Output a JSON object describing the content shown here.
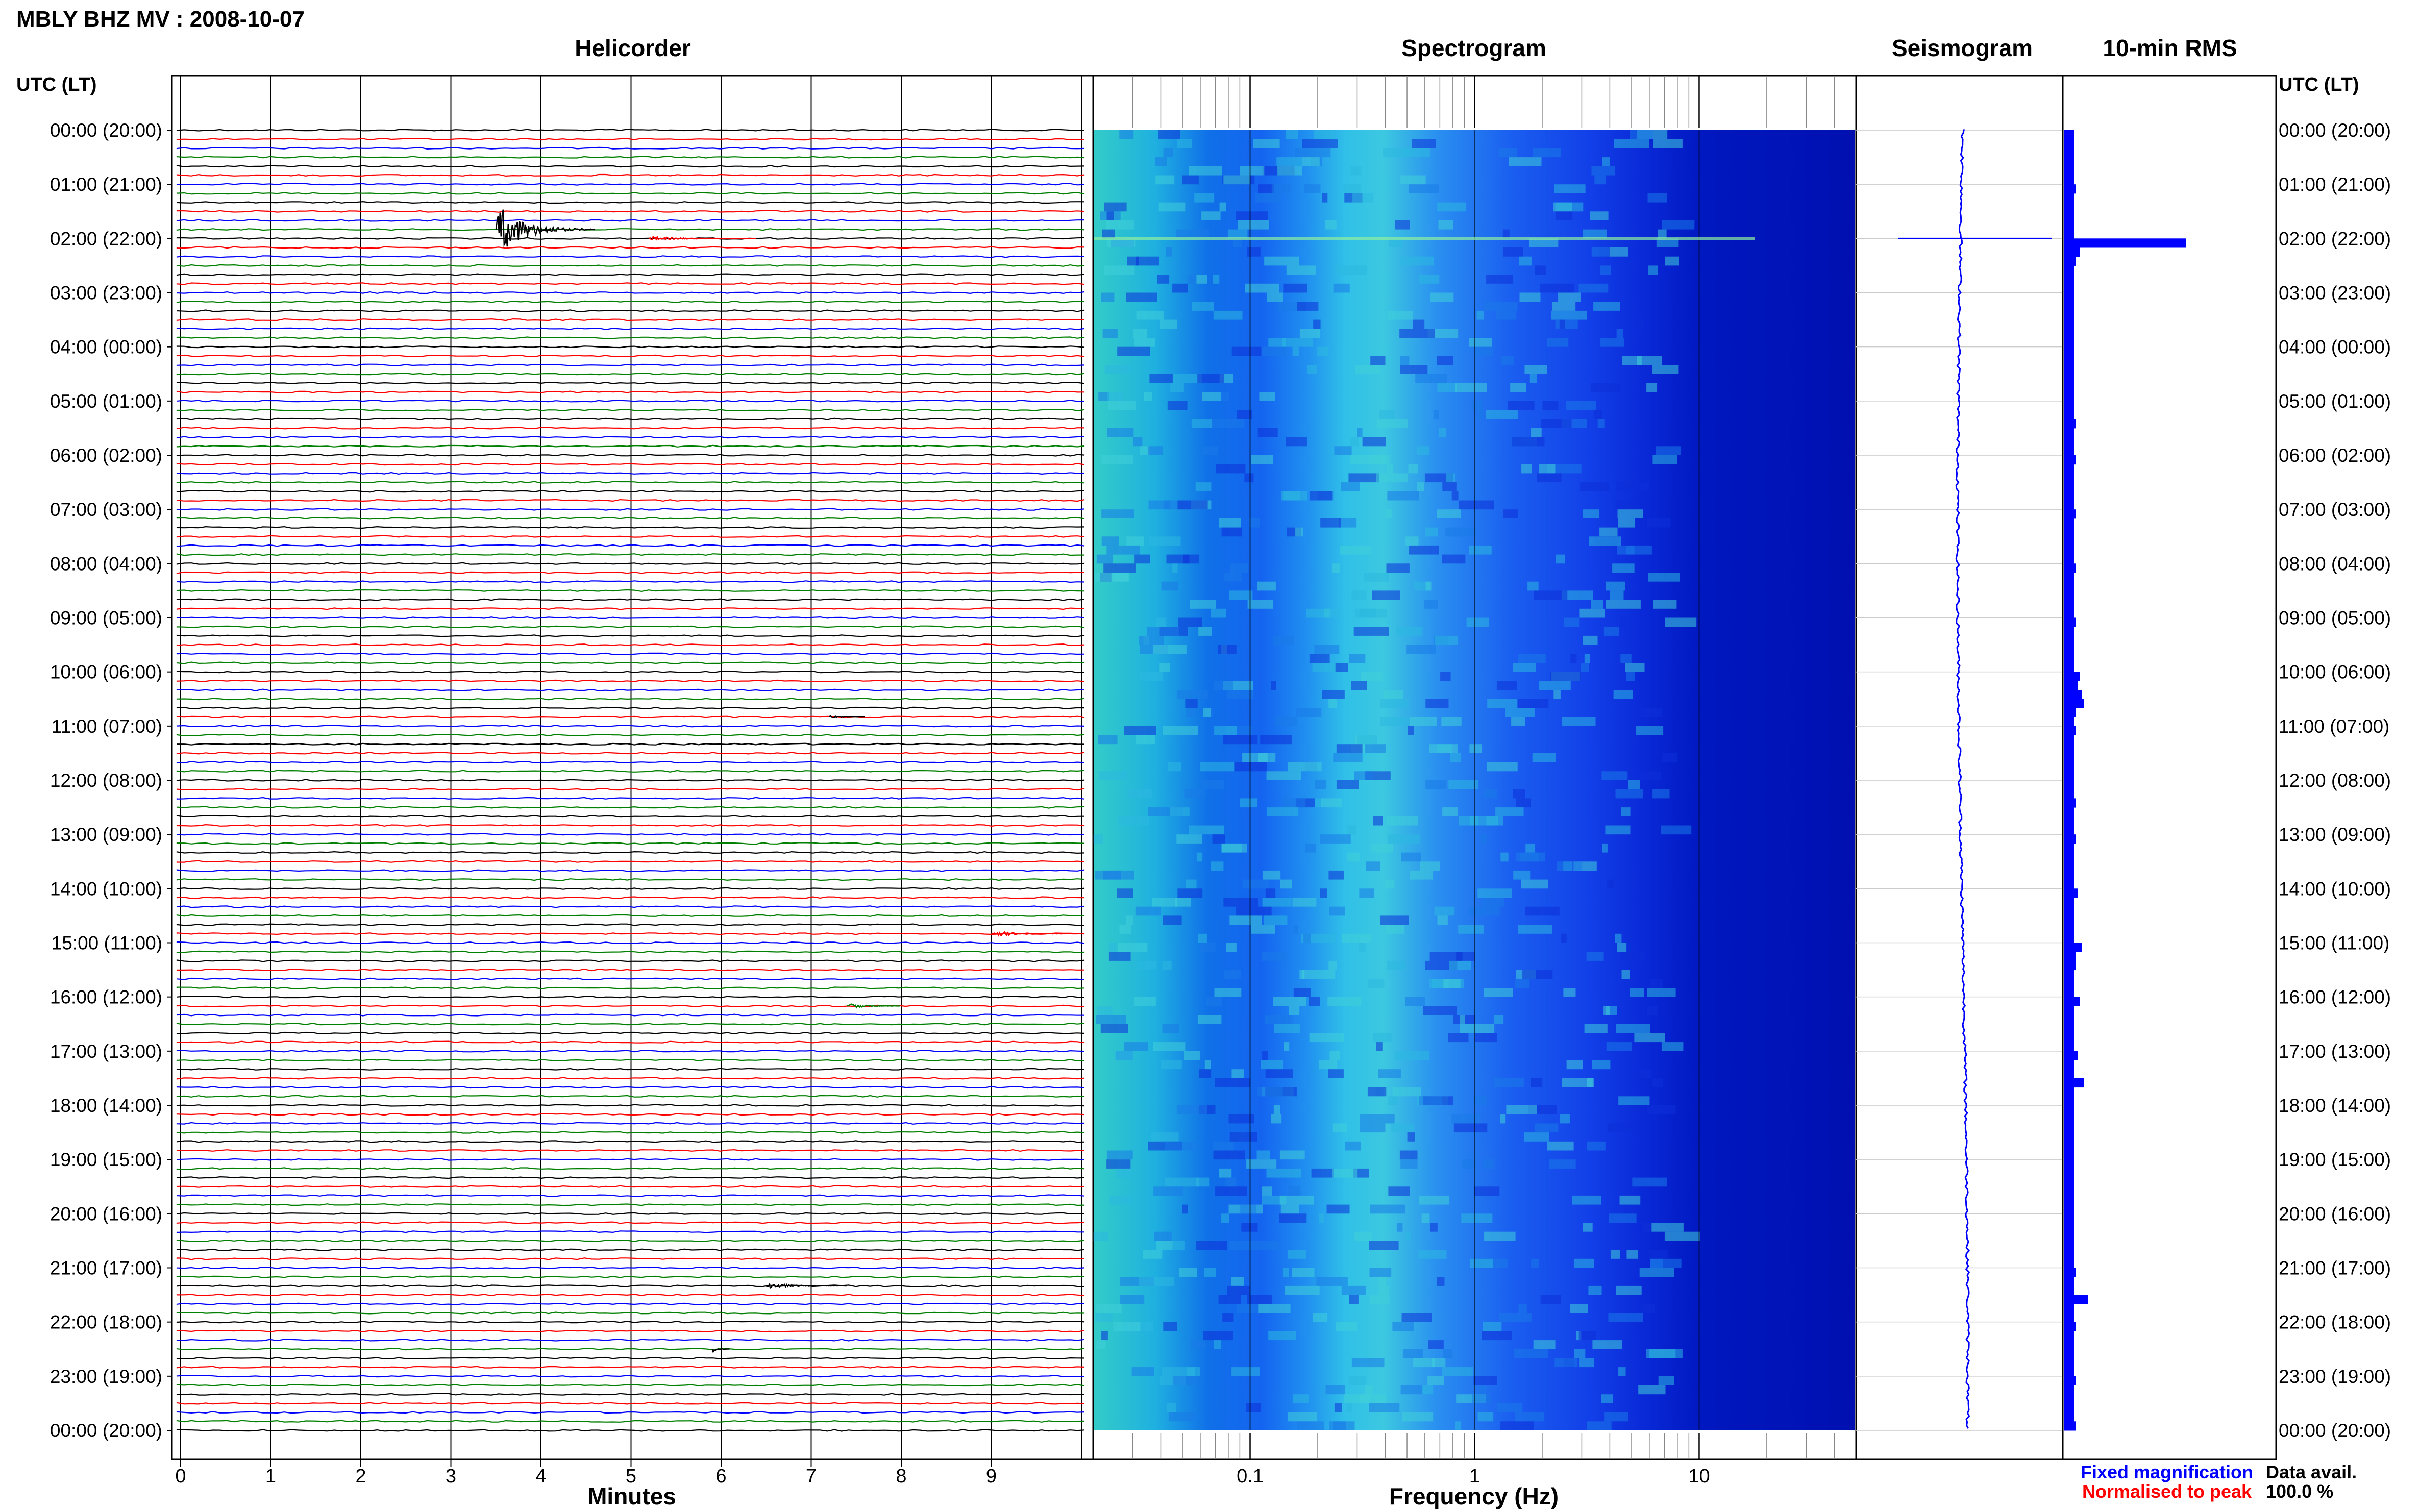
{
  "header": {
    "title": "MBLY BHZ MV : 2008-10-07"
  },
  "panels": {
    "helicorder": "Helicorder",
    "spectrogram": "Spectrogram",
    "seismogram": "Seismogram",
    "rms": "10-min RMS"
  },
  "time_axis": {
    "label_left": "UTC (LT)",
    "label_right": "UTC (LT)",
    "hours": [
      "00:00 (20:00)",
      "01:00 (21:00)",
      "02:00 (22:00)",
      "03:00 (23:00)",
      "04:00 (00:00)",
      "05:00 (01:00)",
      "06:00 (02:00)",
      "07:00 (03:00)",
      "08:00 (04:00)",
      "09:00 (05:00)",
      "10:00 (06:00)",
      "11:00 (07:00)",
      "12:00 (08:00)",
      "13:00 (09:00)",
      "14:00 (10:00)",
      "15:00 (11:00)",
      "16:00 (12:00)",
      "17:00 (13:00)",
      "18:00 (14:00)",
      "19:00 (15:00)",
      "20:00 (16:00)",
      "21:00 (17:00)",
      "22:00 (18:00)",
      "23:00 (19:00)",
      "00:00 (20:00)"
    ]
  },
  "axes": {
    "minutes_label": "Minutes",
    "minutes_ticks": [
      "0",
      "1",
      "2",
      "3",
      "4",
      "5",
      "6",
      "7",
      "8",
      "9"
    ],
    "frequency_label": "Frequency (Hz)",
    "frequency_ticks": [
      "0.1",
      "1",
      "10"
    ]
  },
  "legend": {
    "fixed": "Fixed magnification",
    "fixed_color": "#0000ff",
    "normalised": "Normalised to peak",
    "normalised_color": "#ff0000",
    "data_avail_label": "Data avail.",
    "data_avail_value": "100.0 %"
  },
  "chart_data": {
    "type": "helicorder",
    "trace_colors": [
      "#000000",
      "#ff0000",
      "#0000ff",
      "#008000"
    ],
    "hours_per_day": 24,
    "traces_per_hour": 6,
    "minutes_per_trace": 10,
    "events": [
      {
        "hour": 1,
        "trace": 5,
        "minute": 3.5,
        "duration": 1.1,
        "amp": 3.0,
        "color": "#000000"
      },
      {
        "hour": 2,
        "trace": 0,
        "minute": 5.2,
        "duration": 1.2,
        "amp": 0.25,
        "color": "#ff0000"
      },
      {
        "hour": 10,
        "trace": 5,
        "minute": 7.2,
        "duration": 0.4,
        "amp": 0.2,
        "color": "#000000"
      },
      {
        "hour": 14,
        "trace": 5,
        "minute": 9.0,
        "duration": 1.0,
        "amp": 0.35,
        "color": "#ff0000"
      },
      {
        "hour": 16,
        "trace": 1,
        "minute": 7.4,
        "duration": 0.6,
        "amp": 0.35,
        "color": "#008000"
      },
      {
        "hour": 21,
        "trace": 2,
        "minute": 6.5,
        "duration": 0.9,
        "amp": 0.4,
        "color": "#000000"
      },
      {
        "hour": 22,
        "trace": 3,
        "minute": 5.9,
        "duration": 0.2,
        "amp": 0.4,
        "color": "#000000"
      }
    ],
    "spectrogram_freq_range_hz": [
      0.02,
      50
    ],
    "rms_10min_relative": [
      0.05,
      0.05,
      0.05,
      0.05,
      0.05,
      0.05,
      0.06,
      0.05,
      0.05,
      0.05,
      0.05,
      0.05,
      0.6,
      0.08,
      0.06,
      0.05,
      0.05,
      0.05,
      0.05,
      0.05,
      0.05,
      0.05,
      0.05,
      0.05,
      0.05,
      0.05,
      0.05,
      0.05,
      0.05,
      0.05,
      0.05,
      0.05,
      0.06,
      0.05,
      0.05,
      0.05,
      0.06,
      0.05,
      0.05,
      0.05,
      0.05,
      0.05,
      0.06,
      0.05,
      0.05,
      0.05,
      0.05,
      0.05,
      0.06,
      0.05,
      0.05,
      0.05,
      0.05,
      0.05,
      0.06,
      0.05,
      0.05,
      0.05,
      0.05,
      0.05,
      0.08,
      0.07,
      0.09,
      0.1,
      0.06,
      0.05,
      0.06,
      0.05,
      0.05,
      0.05,
      0.05,
      0.05,
      0.05,
      0.05,
      0.06,
      0.05,
      0.05,
      0.05,
      0.06,
      0.05,
      0.05,
      0.05,
      0.05,
      0.05,
      0.07,
      0.05,
      0.05,
      0.05,
      0.05,
      0.05,
      0.09,
      0.06,
      0.06,
      0.05,
      0.05,
      0.05,
      0.08,
      0.05,
      0.05,
      0.05,
      0.05,
      0.05,
      0.07,
      0.05,
      0.05,
      0.1,
      0.05,
      0.05,
      0.05,
      0.05,
      0.05,
      0.05,
      0.05,
      0.05,
      0.05,
      0.05,
      0.05,
      0.05,
      0.05,
      0.05,
      0.05,
      0.05,
      0.05,
      0.05,
      0.05,
      0.05,
      0.06,
      0.05,
      0.05,
      0.12,
      0.05,
      0.05,
      0.06,
      0.05,
      0.05,
      0.05,
      0.05,
      0.05,
      0.06,
      0.05,
      0.05,
      0.05,
      0.05,
      0.06
    ]
  }
}
